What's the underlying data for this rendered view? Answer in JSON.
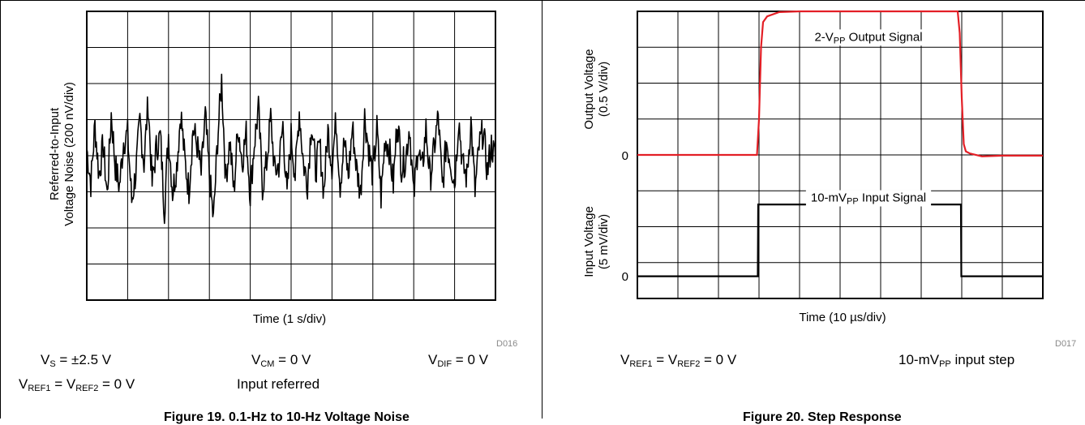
{
  "left": {
    "chart_data": {
      "type": "line",
      "title": "",
      "xlabel": "Time (1 s/div)",
      "ylabel_line1": "Referred-to-Input",
      "ylabel_line2": "Voltage Noise (200 nV/div)",
      "x_divisions": 10,
      "y_divisions": 8,
      "x_unit": "s",
      "y_unit": "nV",
      "xlim": [
        0,
        10
      ],
      "ylim": [
        -800,
        800
      ],
      "series": [
        {
          "color": "#000000",
          "x": [
            0,
            0.1,
            0.2,
            0.3,
            0.4,
            0.5,
            0.6,
            0.7,
            0.8,
            0.9,
            1.0,
            1.1,
            1.2,
            1.3,
            1.4,
            1.5,
            1.6,
            1.7,
            1.8,
            1.9,
            2.0,
            2.1,
            2.2,
            2.3,
            2.4,
            2.5,
            2.6,
            2.7,
            2.8,
            2.9,
            3.0,
            3.1,
            3.2,
            3.3,
            3.4,
            3.5,
            3.6,
            3.7,
            3.8,
            3.9,
            4.0,
            4.1,
            4.2,
            4.3,
            4.4,
            4.5,
            4.6,
            4.7,
            4.8,
            4.9,
            5.0,
            5.1,
            5.2,
            5.3,
            5.4,
            5.5,
            5.6,
            5.7,
            5.8,
            5.9,
            6.0,
            6.1,
            6.2,
            6.3,
            6.4,
            6.5,
            6.6,
            6.7,
            6.8,
            6.9,
            7.0,
            7.1,
            7.2,
            7.3,
            7.4,
            7.5,
            7.6,
            7.7,
            7.8,
            7.9,
            8.0,
            8.1,
            8.2,
            8.3,
            8.4,
            8.5,
            8.6,
            8.7,
            8.8,
            8.9,
            9.0,
            9.1,
            9.2,
            9.3,
            9.4,
            9.5,
            9.6,
            9.7,
            9.8,
            9.9,
            10.0
          ],
          "values": [
            40,
            -150,
            170,
            -110,
            60,
            -220,
            230,
            -60,
            -170,
            80,
            120,
            -250,
            -90,
            190,
            -40,
            300,
            -160,
            40,
            110,
            -300,
            120,
            -200,
            -60,
            240,
            -30,
            -190,
            150,
            60,
            -100,
            220,
            -110,
            -360,
            90,
            420,
            -130,
            80,
            -200,
            170,
            -30,
            120,
            -210,
            70,
            260,
            -170,
            -40,
            210,
            -90,
            -50,
            170,
            -230,
            110,
            -110,
            250,
            -40,
            -150,
            190,
            -80,
            60,
            -200,
            140,
            -50,
            200,
            -160,
            80,
            -120,
            160,
            -70,
            -210,
            220,
            30,
            -110,
            150,
            -230,
            100,
            40,
            -160,
            210,
            -60,
            -20,
            170,
            -240,
            60,
            -90,
            150,
            -130,
            40,
            220,
            -180,
            80,
            -30,
            -150,
            210,
            -60,
            -120,
            190,
            -200,
            50,
            140,
            -90,
            60,
            -20
          ]
        }
      ]
    },
    "code": "D016",
    "conditions": {
      "vs_main": "V",
      "vs_sub": "S",
      "vs_value": " = ±2.5 V",
      "vcm_main": "V",
      "vcm_sub": "CM",
      "vcm_value": " = 0 V",
      "vdif_main": "V",
      "vdif_sub": "DIF",
      "vdif_value": " = 0 V",
      "vref_a_main": "V",
      "vref_a_sub": "REF1",
      "vref_mid": " = V",
      "vref_b_sub": "REF2",
      "vref_value": " = 0 V",
      "note": "Input referred"
    },
    "caption": "Figure 19. 0.1-Hz to 10-Hz Voltage Noise"
  },
  "right": {
    "chart_data": {
      "type": "line",
      "title": "",
      "xlabel": "Time (10 µs/div)",
      "x_divisions": 10,
      "y_divisions": 8,
      "xlim": [
        0,
        100
      ],
      "upper": {
        "ylabel_line1": "Output Voltage",
        "ylabel_line2": "(0.5 V/div)",
        "zero_label": "0",
        "annotation_pre": "2-V",
        "annotation_sub": "PP",
        "annotation_post": " Output Signal",
        "color": "#e31f26",
        "ylim": [
          -1,
          3
        ],
        "x": [
          0,
          29.5,
          30,
          30.5,
          31,
          32,
          35,
          40,
          50,
          60,
          70,
          79,
          79.5,
          80,
          80.5,
          81,
          82,
          85,
          90,
          100
        ],
        "values": [
          0,
          0,
          0.5,
          1.5,
          1.85,
          1.93,
          1.99,
          2.0,
          2.0,
          2.0,
          2.0,
          2.0,
          1.7,
          0.8,
          0.15,
          0.05,
          0.02,
          -0.02,
          -0.01,
          -0.01
        ]
      },
      "lower": {
        "ylabel_line1": "Input Voltage",
        "ylabel_line2": "(5 mV/div)",
        "zero_label": "0",
        "annotation_pre": "10-mV",
        "annotation_sub": "PP",
        "annotation_post": " Input Signal",
        "color": "#000000",
        "ylim": [
          -5,
          15
        ],
        "x": [
          0,
          29.7,
          29.8,
          79.8,
          79.9,
          100
        ],
        "values": [
          0,
          0,
          10,
          10,
          0,
          0
        ]
      }
    },
    "code": "D017",
    "conditions": {
      "vref_a_main": "V",
      "vref_a_sub": "REF1",
      "vref_mid": " = V",
      "vref_b_sub": "REF2",
      "vref_value": " = 0 V",
      "step_pre": "10-mV",
      "step_sub": "PP",
      "step_post": " input step"
    },
    "caption": "Figure 20. Step Response"
  }
}
